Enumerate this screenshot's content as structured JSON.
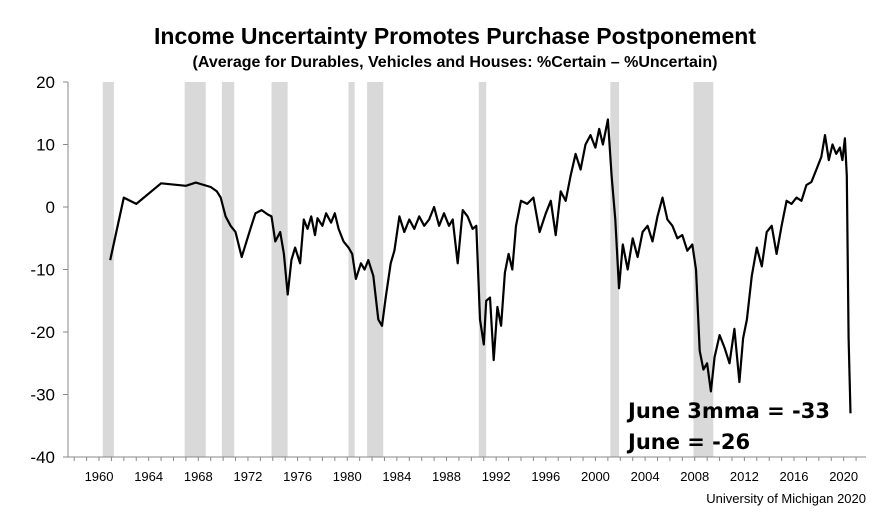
{
  "chart_data": {
    "type": "line",
    "title": "Income Uncertainty Promotes Purchase Postponement",
    "subtitle": "(Average for Durables, Vehicles and Houses: %Certain – %Uncertain)",
    "xlabel": "",
    "ylabel": "",
    "xlim": [
      1957.5,
      2021.8
    ],
    "ylim": [
      -40,
      20
    ],
    "y_ticks": [
      "20",
      "10",
      "0",
      "-10",
      "-20",
      "-30",
      "-40"
    ],
    "x_ticks": [
      "1960",
      "1964",
      "1968",
      "1972",
      "1976",
      "1980",
      "1984",
      "1988",
      "1992",
      "1996",
      "2000",
      "2004",
      "2008",
      "2012",
      "2016",
      "2020"
    ],
    "grid": false,
    "line_color": "#000000",
    "recession_color": "#d9d9d9",
    "recessions": [
      [
        1960.3,
        1961.2
      ],
      [
        1966.9,
        1968.6
      ],
      [
        1969.9,
        1970.9
      ],
      [
        1973.9,
        1975.2
      ],
      [
        1980.1,
        1980.6
      ],
      [
        1981.6,
        1982.9
      ],
      [
        1990.6,
        1991.2
      ],
      [
        2001.2,
        2001.9
      ],
      [
        2007.9,
        2009.5
      ]
    ],
    "series": [
      {
        "x": [
          1960.9,
          1962,
          1963,
          1965,
          1967,
          1967.8,
          1969,
          1969.5,
          1969.8,
          1970.2,
          1970.6,
          1971,
          1971.5,
          1972.2,
          1972.6,
          1973.1,
          1973.6,
          1973.9,
          1974.2,
          1974.6,
          1974.9,
          1975.2,
          1975.5,
          1975.8,
          1976.2,
          1976.5,
          1976.8,
          1977.1,
          1977.4,
          1977.6,
          1978,
          1978.3,
          1978.7,
          1979,
          1979.3,
          1979.7,
          1980.1,
          1980.4,
          1980.7,
          1981.1,
          1981.4,
          1981.7,
          1982.1,
          1982.5,
          1982.8,
          1983.1,
          1983.5,
          1983.8,
          1984.2,
          1984.6,
          1985,
          1985.4,
          1985.8,
          1986.2,
          1986.6,
          1987,
          1987.4,
          1987.8,
          1988.2,
          1988.5,
          1988.9,
          1989.3,
          1989.7,
          1990.1,
          1990.4,
          1990.7,
          1991,
          1991.2,
          1991.5,
          1991.8,
          1992.1,
          1992.4,
          1992.7,
          1993,
          1993.3,
          1993.6,
          1994,
          1994.5,
          1995,
          1995.5,
          1996,
          1996.4,
          1996.8,
          1997.2,
          1997.6,
          1998,
          1998.4,
          1998.8,
          1999.2,
          1999.6,
          2000,
          2000.3,
          2000.6,
          2001,
          2001.3,
          2001.6,
          2001.9,
          2002.2,
          2002.6,
          2003,
          2003.4,
          2003.8,
          2004.2,
          2004.6,
          2005,
          2005.4,
          2005.8,
          2006.2,
          2006.6,
          2007,
          2007.4,
          2007.8,
          2008.1,
          2008.4,
          2008.7,
          2009,
          2009.3,
          2009.6,
          2010,
          2010.4,
          2010.8,
          2011.2,
          2011.6,
          2011.9,
          2012.2,
          2012.6,
          2013,
          2013.4,
          2013.8,
          2014.2,
          2014.6,
          2015,
          2015.4,
          2015.8,
          2016.2,
          2016.6,
          2017,
          2017.4,
          2017.8,
          2018.2,
          2018.5,
          2018.8,
          2019.1,
          2019.4,
          2019.7,
          2019.9,
          2020.1,
          2020.25,
          2020.4,
          2020.55
        ],
        "y": [
          -8.5,
          1.5,
          0.5,
          3.8,
          3.4,
          3.9,
          3.2,
          2.5,
          1.5,
          -1.5,
          -3.0,
          -4.0,
          -8.0,
          -3.5,
          -1.0,
          -0.5,
          -1.2,
          -1.5,
          -5.5,
          -4.0,
          -7.5,
          -14.0,
          -8.5,
          -6.5,
          -9.0,
          -2.0,
          -3.5,
          -1.5,
          -4.5,
          -1.8,
          -3.0,
          -1.0,
          -2.5,
          -1.0,
          -3.5,
          -5.5,
          -6.5,
          -7.5,
          -11.5,
          -9.0,
          -10.0,
          -8.5,
          -11.0,
          -18.0,
          -19.0,
          -14.5,
          -9.0,
          -7.0,
          -1.5,
          -4.0,
          -2.0,
          -3.5,
          -1.5,
          -3.0,
          -2.0,
          0.0,
          -3.0,
          -1.0,
          -3.0,
          -2.0,
          -9.0,
          -0.5,
          -1.5,
          -3.5,
          -3.0,
          -18.0,
          -22.0,
          -15.0,
          -14.5,
          -24.5,
          -16.0,
          -19.0,
          -10.5,
          -7.5,
          -10.0,
          -3.0,
          1.0,
          0.5,
          1.5,
          -4.0,
          -1.0,
          1.0,
          -4.5,
          2.5,
          1.0,
          5.0,
          8.5,
          6.0,
          10.0,
          11.5,
          9.5,
          12.5,
          10.0,
          14.0,
          5.0,
          -2.0,
          -13.0,
          -6.0,
          -10.0,
          -5.0,
          -8.0,
          -4.0,
          -3.0,
          -5.5,
          -1.5,
          1.5,
          -2.0,
          -3.0,
          -5.0,
          -4.5,
          -7.0,
          -6.0,
          -10.0,
          -23.0,
          -26.0,
          -25.0,
          -29.5,
          -24.0,
          -20.5,
          -22.5,
          -25.0,
          -19.5,
          -28.0,
          -21.0,
          -18.0,
          -11.0,
          -6.5,
          -9.5,
          -4.0,
          -3.0,
          -7.5,
          -3.0,
          1.0,
          0.5,
          1.5,
          1.0,
          3.5,
          4.0,
          6.0,
          8.0,
          11.5,
          7.5,
          10.0,
          8.5,
          9.5,
          7.5,
          11.0,
          5.0,
          -21.0,
          -33.0
        ]
      }
    ],
    "annotations": [
      "June 3mma = -33",
      "June = -26"
    ],
    "source": "University of Michigan 2020"
  }
}
